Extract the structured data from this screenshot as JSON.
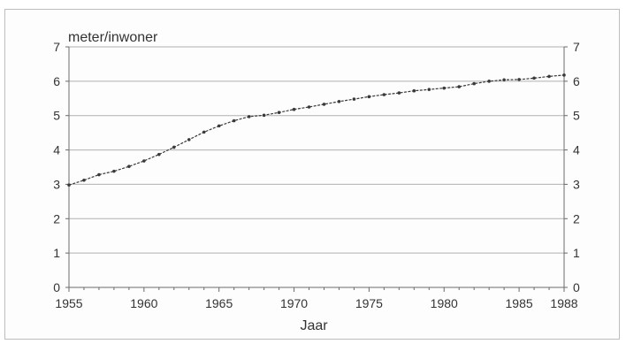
{
  "chart_data": {
    "type": "line",
    "ylabel": "meter/inwoner",
    "xlabel": "Jaar",
    "xlim": [
      1955,
      1988
    ],
    "ylim": [
      0,
      7
    ],
    "x_ticks": [
      1955,
      1960,
      1965,
      1970,
      1975,
      1980,
      1985,
      1988
    ],
    "y_ticks": [
      0,
      1,
      2,
      3,
      4,
      5,
      6,
      7
    ],
    "grid": "horizontal",
    "colors": {
      "line": "#3a3a3a",
      "grid": "#b0b0b0",
      "axis": "#6a6a6a"
    },
    "series": [
      {
        "x": [
          1955,
          1956,
          1957,
          1958,
          1959,
          1960,
          1961,
          1962,
          1963,
          1964,
          1965,
          1966,
          1967,
          1968,
          1969,
          1970,
          1971,
          1972,
          1973,
          1974,
          1975,
          1976,
          1977,
          1978,
          1979,
          1980,
          1981,
          1982,
          1983,
          1984,
          1985,
          1986,
          1987,
          1988
        ],
        "values": [
          2.98,
          3.12,
          3.28,
          3.38,
          3.52,
          3.68,
          3.87,
          4.08,
          4.3,
          4.52,
          4.7,
          4.85,
          4.97,
          5.01,
          5.09,
          5.18,
          5.25,
          5.33,
          5.41,
          5.48,
          5.55,
          5.61,
          5.66,
          5.72,
          5.76,
          5.8,
          5.84,
          5.93,
          6.0,
          6.04,
          6.05,
          6.09,
          6.14,
          6.18
        ]
      }
    ]
  }
}
